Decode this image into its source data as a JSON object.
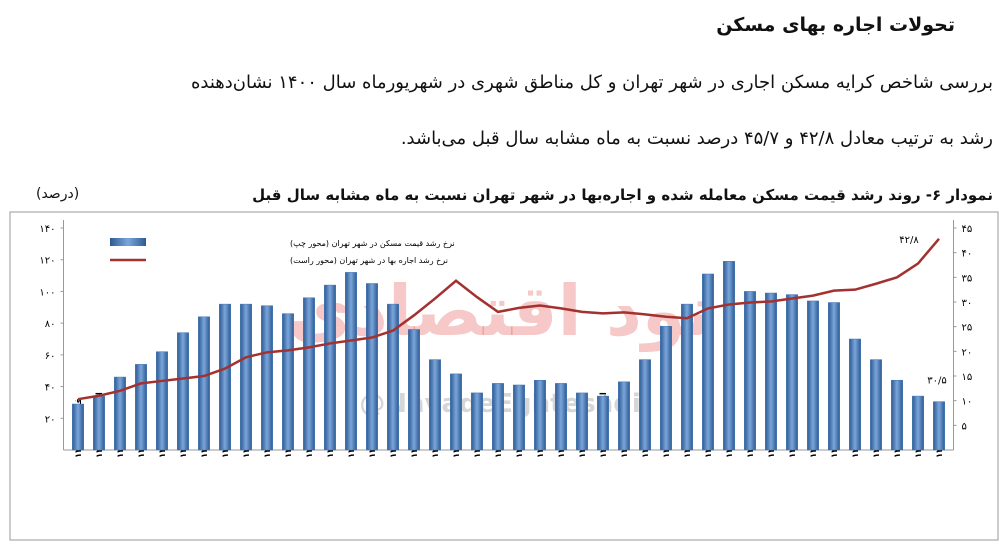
{
  "document": {
    "heading": "تحولات اجاره بهای مسکن",
    "paragraph": [
      "بررسی شاخص کرایه مسکن اجاری در شهر تهران و کل مناطق شهری در شهریورماه سال ۱۴۰۰ نشان‌دهنده",
      "رشد به ترتیب معادل ۴۲/۸ و ۴۵/۷ درصد نسبت به ماه مشابه سال قبل می‌باشد."
    ],
    "watermark": {
      "logo": "نود اقتصادی",
      "handle": "@NavadeEghtesadi"
    }
  },
  "chart_data": {
    "type": "bar-line",
    "title": "نمودار ۶- روند رشد قیمت مسکن معامله شده و اجاره‌بها در شهر تهران نسبت به ماه مشابه سال قبل",
    "unit_label": "(درصد)",
    "categories": [
      "فروردین ۱۳۹۷",
      "اردیبهشت ۱۳۹۷",
      "خرداد ۱۳۹۷",
      "تیر ۱۳۹۷",
      "مرداد ۱۳۹۷",
      "شهریور ۱۳۹۷",
      "مهر ۱۳۹۷",
      "آبان ۱۳۹۷",
      "آذر ۱۳۹۷",
      "دی ۱۳۹۷",
      "بهمن ۱۳۹۷",
      "اسفند ۱۳۹۷",
      "فروردین ۱۳۹۸",
      "اردیبهشت ۱۳۹۸",
      "خرداد ۱۳۹۸",
      "تیر ۱۳۹۸",
      "مرداد ۱۳۹۸",
      "شهریور ۱۳۹۸",
      "مهر ۱۳۹۸",
      "آبان ۱۳۹۸",
      "آذر ۱۳۹۸",
      "دی ۱۳۹۸",
      "بهمن ۱۳۹۸",
      "اسفند ۱۳۹۸",
      "فروردین ۱۳۹۹",
      "اردیبهشت ۱۳۹۹",
      "خرداد ۱۳۹۹",
      "تیر ۱۳۹۹",
      "مرداد ۱۳۹۹",
      "شهریور ۱۳۹۹",
      "مهر ۱۳۹۹",
      "آبان ۱۳۹۹",
      "آذر ۱۳۹۹",
      "دی ۱۳۹۹",
      "بهمن ۱۳۹۹",
      "اسفند ۱۳۹۹",
      "فروردین ۱۴۰۰",
      "اردیبهشت ۱۴۰۰",
      "خرداد ۱۴۰۰",
      "تیر ۱۴۰۰",
      "مرداد ۱۴۰۰",
      "شهریور ۱۴۰۰"
    ],
    "series": [
      {
        "name": "نرخ رشد قیمت مسکن در شهر تهران (محور چپ)",
        "color": "#3f72b0",
        "type": "bar",
        "values": [
          29,
          34,
          46,
          54,
          62,
          74,
          84,
          92,
          92,
          91,
          86,
          96,
          104,
          112,
          105,
          92,
          76,
          57,
          48,
          36,
          42,
          41,
          44,
          42,
          36,
          34,
          43,
          57,
          78,
          92,
          111,
          119,
          100,
          99,
          98,
          94,
          93,
          70,
          57,
          44,
          34,
          30.5
        ],
        "value_labels": [
          null,
          null,
          null,
          null,
          null,
          null,
          null,
          null,
          null,
          null,
          null,
          null,
          null,
          null,
          null,
          null,
          null,
          null,
          null,
          null,
          null,
          null,
          null,
          null,
          null,
          null,
          null,
          null,
          null,
          null,
          null,
          null,
          null,
          null,
          null,
          null,
          null,
          null,
          null,
          null,
          null,
          "۳۰/۵"
        ]
      },
      {
        "name": "نرخ رشد اجاره بها در شهر تهران (محور راست)",
        "color": "#a3312f",
        "type": "line",
        "axis": "y2",
        "values": [
          10.3,
          11,
          12,
          13.5,
          14,
          14.5,
          15,
          16.5,
          18.8,
          19.8,
          20.2,
          20.8,
          21.6,
          22.2,
          22.8,
          24.2,
          27.3,
          30.7,
          34.3,
          31,
          28,
          28.8,
          29.3,
          28.7,
          28,
          27.7,
          27.9,
          27.5,
          27,
          26.7,
          28.7,
          29.5,
          29.9,
          30.1,
          30.7,
          31.3,
          32.3,
          32.5,
          33.7,
          35,
          37.8,
          42.8
        ],
        "value_labels": [
          null,
          null,
          null,
          null,
          null,
          null,
          null,
          null,
          null,
          null,
          null,
          null,
          null,
          null,
          null,
          null,
          null,
          null,
          null,
          null,
          null,
          null,
          null,
          null,
          null,
          null,
          null,
          null,
          null,
          null,
          null,
          null,
          null,
          null,
          null,
          null,
          null,
          null,
          null,
          null,
          null,
          "۴۲/۸"
        ]
      }
    ],
    "ylim": [
      0,
      140
    ],
    "yticks": [
      {
        "value": 20,
        "label": "۲۰"
      },
      {
        "value": 40,
        "label": "۴۰"
      },
      {
        "value": 60,
        "label": "۶۰"
      },
      {
        "value": 80,
        "label": "۸۰"
      },
      {
        "value": 100,
        "label": "۱۰۰"
      },
      {
        "value": 120,
        "label": "۱۲۰"
      },
      {
        "value": 140,
        "label": "۱۴۰"
      }
    ],
    "y2lim": [
      0,
      45
    ],
    "y2ticks": [
      {
        "value": 5,
        "label": "۵"
      },
      {
        "value": 10,
        "label": "۱۰"
      },
      {
        "value": 15,
        "label": "۱۵"
      },
      {
        "value": 20,
        "label": "۲۰"
      },
      {
        "value": 25,
        "label": "۲۵"
      },
      {
        "value": 30,
        "label": "۳۰"
      },
      {
        "value": 35,
        "label": "۳۵"
      },
      {
        "value": 40,
        "label": "۴۰"
      },
      {
        "value": 45,
        "label": "۴۵"
      }
    ],
    "grid": false,
    "legend": "top-left"
  }
}
